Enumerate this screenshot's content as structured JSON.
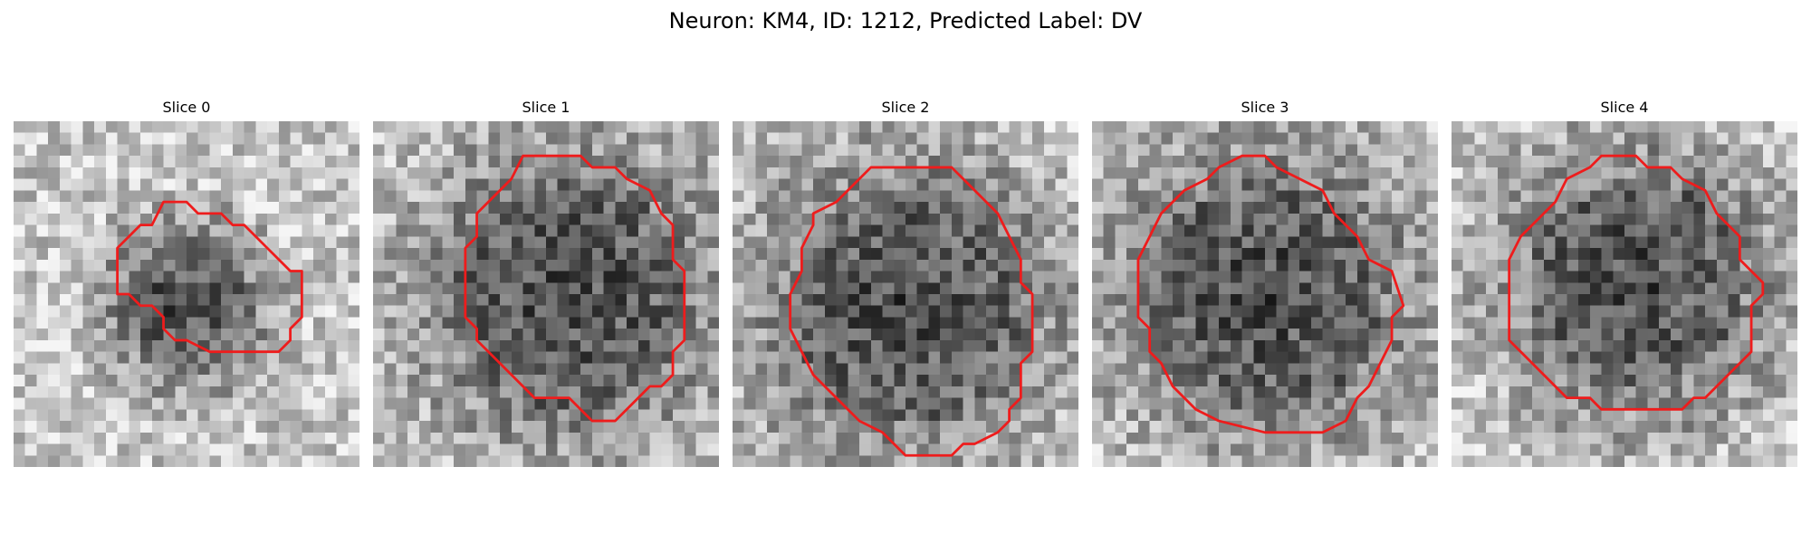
{
  "figure": {
    "title": "Neuron: KM4, ID: 1212, Predicted Label: DV",
    "contour_color": "#ee1c1c",
    "grid_size": 30
  },
  "panels": [
    {
      "label": "Slice 0",
      "seed": 11,
      "background": "mid-gray noise with dark cell body lower-center",
      "contour": [
        [
          13,
          7
        ],
        [
          15,
          7
        ],
        [
          16,
          8
        ],
        [
          18,
          8
        ],
        [
          19,
          9
        ],
        [
          20,
          9
        ],
        [
          22,
          11
        ],
        [
          23,
          12
        ],
        [
          24,
          13
        ],
        [
          25,
          13
        ],
        [
          25,
          17
        ],
        [
          24,
          18
        ],
        [
          24,
          19
        ],
        [
          23,
          20
        ],
        [
          17,
          20
        ],
        [
          15,
          19
        ],
        [
          14,
          19
        ],
        [
          13,
          18
        ],
        [
          13,
          17
        ],
        [
          12,
          16
        ],
        [
          11,
          16
        ],
        [
          10,
          15
        ],
        [
          9,
          15
        ],
        [
          9,
          11
        ],
        [
          10,
          10
        ],
        [
          11,
          9
        ],
        [
          12,
          9
        ]
      ],
      "dark_blob": {
        "cx": 15,
        "cy": 16,
        "r": 5.5
      }
    },
    {
      "label": "Slice 1",
      "seed": 23,
      "background": "light noise with large very dark cell body",
      "contour": [
        [
          13,
          3
        ],
        [
          18,
          3
        ],
        [
          19,
          4
        ],
        [
          21,
          4
        ],
        [
          22,
          5
        ],
        [
          24,
          6
        ],
        [
          25,
          8
        ],
        [
          26,
          9
        ],
        [
          26,
          12
        ],
        [
          27,
          13
        ],
        [
          27,
          19
        ],
        [
          26,
          20
        ],
        [
          26,
          22
        ],
        [
          25,
          23
        ],
        [
          24,
          23
        ],
        [
          23,
          24
        ],
        [
          22,
          25
        ],
        [
          21,
          26
        ],
        [
          19,
          26
        ],
        [
          18,
          25
        ],
        [
          17,
          24
        ],
        [
          14,
          24
        ],
        [
          13,
          23
        ],
        [
          12,
          22
        ],
        [
          11,
          21
        ],
        [
          10,
          20
        ],
        [
          9,
          19
        ],
        [
          9,
          18
        ],
        [
          8,
          17
        ],
        [
          8,
          11
        ],
        [
          9,
          10
        ],
        [
          9,
          8
        ],
        [
          10,
          7
        ],
        [
          11,
          6
        ],
        [
          12,
          5
        ]
      ],
      "dark_blob": {
        "cx": 17,
        "cy": 15,
        "r": 10
      }
    },
    {
      "label": "Slice 2",
      "seed": 37,
      "background": "light gray noise with mid-dark cell body",
      "contour": [
        [
          12,
          4
        ],
        [
          19,
          4
        ],
        [
          20,
          5
        ],
        [
          22,
          7
        ],
        [
          23,
          8
        ],
        [
          24,
          10
        ],
        [
          25,
          12
        ],
        [
          25,
          14
        ],
        [
          26,
          15
        ],
        [
          26,
          20
        ],
        [
          25,
          21
        ],
        [
          25,
          24
        ],
        [
          24,
          25
        ],
        [
          24,
          26
        ],
        [
          23,
          27
        ],
        [
          21,
          28
        ],
        [
          20,
          28
        ],
        [
          19,
          29
        ],
        [
          15,
          29
        ],
        [
          14,
          28
        ],
        [
          13,
          27
        ],
        [
          11,
          26
        ],
        [
          10,
          25
        ],
        [
          9,
          24
        ],
        [
          8,
          23
        ],
        [
          7,
          22
        ],
        [
          6,
          20
        ],
        [
          5,
          18
        ],
        [
          5,
          15
        ],
        [
          6,
          13
        ],
        [
          6,
          11
        ],
        [
          7,
          9
        ],
        [
          7,
          8
        ],
        [
          9,
          7
        ],
        [
          10,
          6
        ]
      ],
      "dark_blob": {
        "cx": 15,
        "cy": 16,
        "r": 10
      }
    },
    {
      "label": "Slice 3",
      "seed": 53,
      "background": "light noise with dark cell body",
      "contour": [
        [
          13,
          3
        ],
        [
          15,
          3
        ],
        [
          16,
          4
        ],
        [
          18,
          5
        ],
        [
          20,
          6
        ],
        [
          21,
          8
        ],
        [
          23,
          10
        ],
        [
          24,
          12
        ],
        [
          26,
          13
        ],
        [
          27,
          16
        ],
        [
          26,
          17
        ],
        [
          26,
          19
        ],
        [
          25,
          21
        ],
        [
          24,
          23
        ],
        [
          23,
          24
        ],
        [
          22,
          26
        ],
        [
          20,
          27
        ],
        [
          15,
          27
        ],
        [
          11,
          26
        ],
        [
          9,
          25
        ],
        [
          7,
          23
        ],
        [
          6,
          21
        ],
        [
          5,
          20
        ],
        [
          5,
          18
        ],
        [
          4,
          17
        ],
        [
          4,
          12
        ],
        [
          5,
          10
        ],
        [
          6,
          8
        ],
        [
          8,
          6
        ],
        [
          10,
          5
        ],
        [
          11,
          4
        ]
      ],
      "dark_blob": {
        "cx": 15,
        "cy": 15,
        "r": 10
      }
    },
    {
      "label": "Slice 4",
      "seed": 71,
      "background": "light noise with mid-dark cell body",
      "contour": [
        [
          13,
          3
        ],
        [
          16,
          3
        ],
        [
          17,
          4
        ],
        [
          19,
          4
        ],
        [
          20,
          5
        ],
        [
          22,
          6
        ],
        [
          23,
          8
        ],
        [
          24,
          9
        ],
        [
          25,
          10
        ],
        [
          25,
          12
        ],
        [
          26,
          13
        ],
        [
          27,
          14
        ],
        [
          27,
          15
        ],
        [
          26,
          16
        ],
        [
          26,
          20
        ],
        [
          25,
          21
        ],
        [
          24,
          22
        ],
        [
          23,
          23
        ],
        [
          22,
          24
        ],
        [
          21,
          24
        ],
        [
          20,
          25
        ],
        [
          13,
          25
        ],
        [
          12,
          24
        ],
        [
          10,
          24
        ],
        [
          8,
          22
        ],
        [
          6,
          20
        ],
        [
          5,
          19
        ],
        [
          5,
          12
        ],
        [
          6,
          10
        ],
        [
          7,
          9
        ],
        [
          8,
          8
        ],
        [
          9,
          7
        ],
        [
          10,
          5
        ],
        [
          12,
          4
        ]
      ],
      "dark_blob": {
        "cx": 16,
        "cy": 14,
        "r": 9
      }
    }
  ]
}
